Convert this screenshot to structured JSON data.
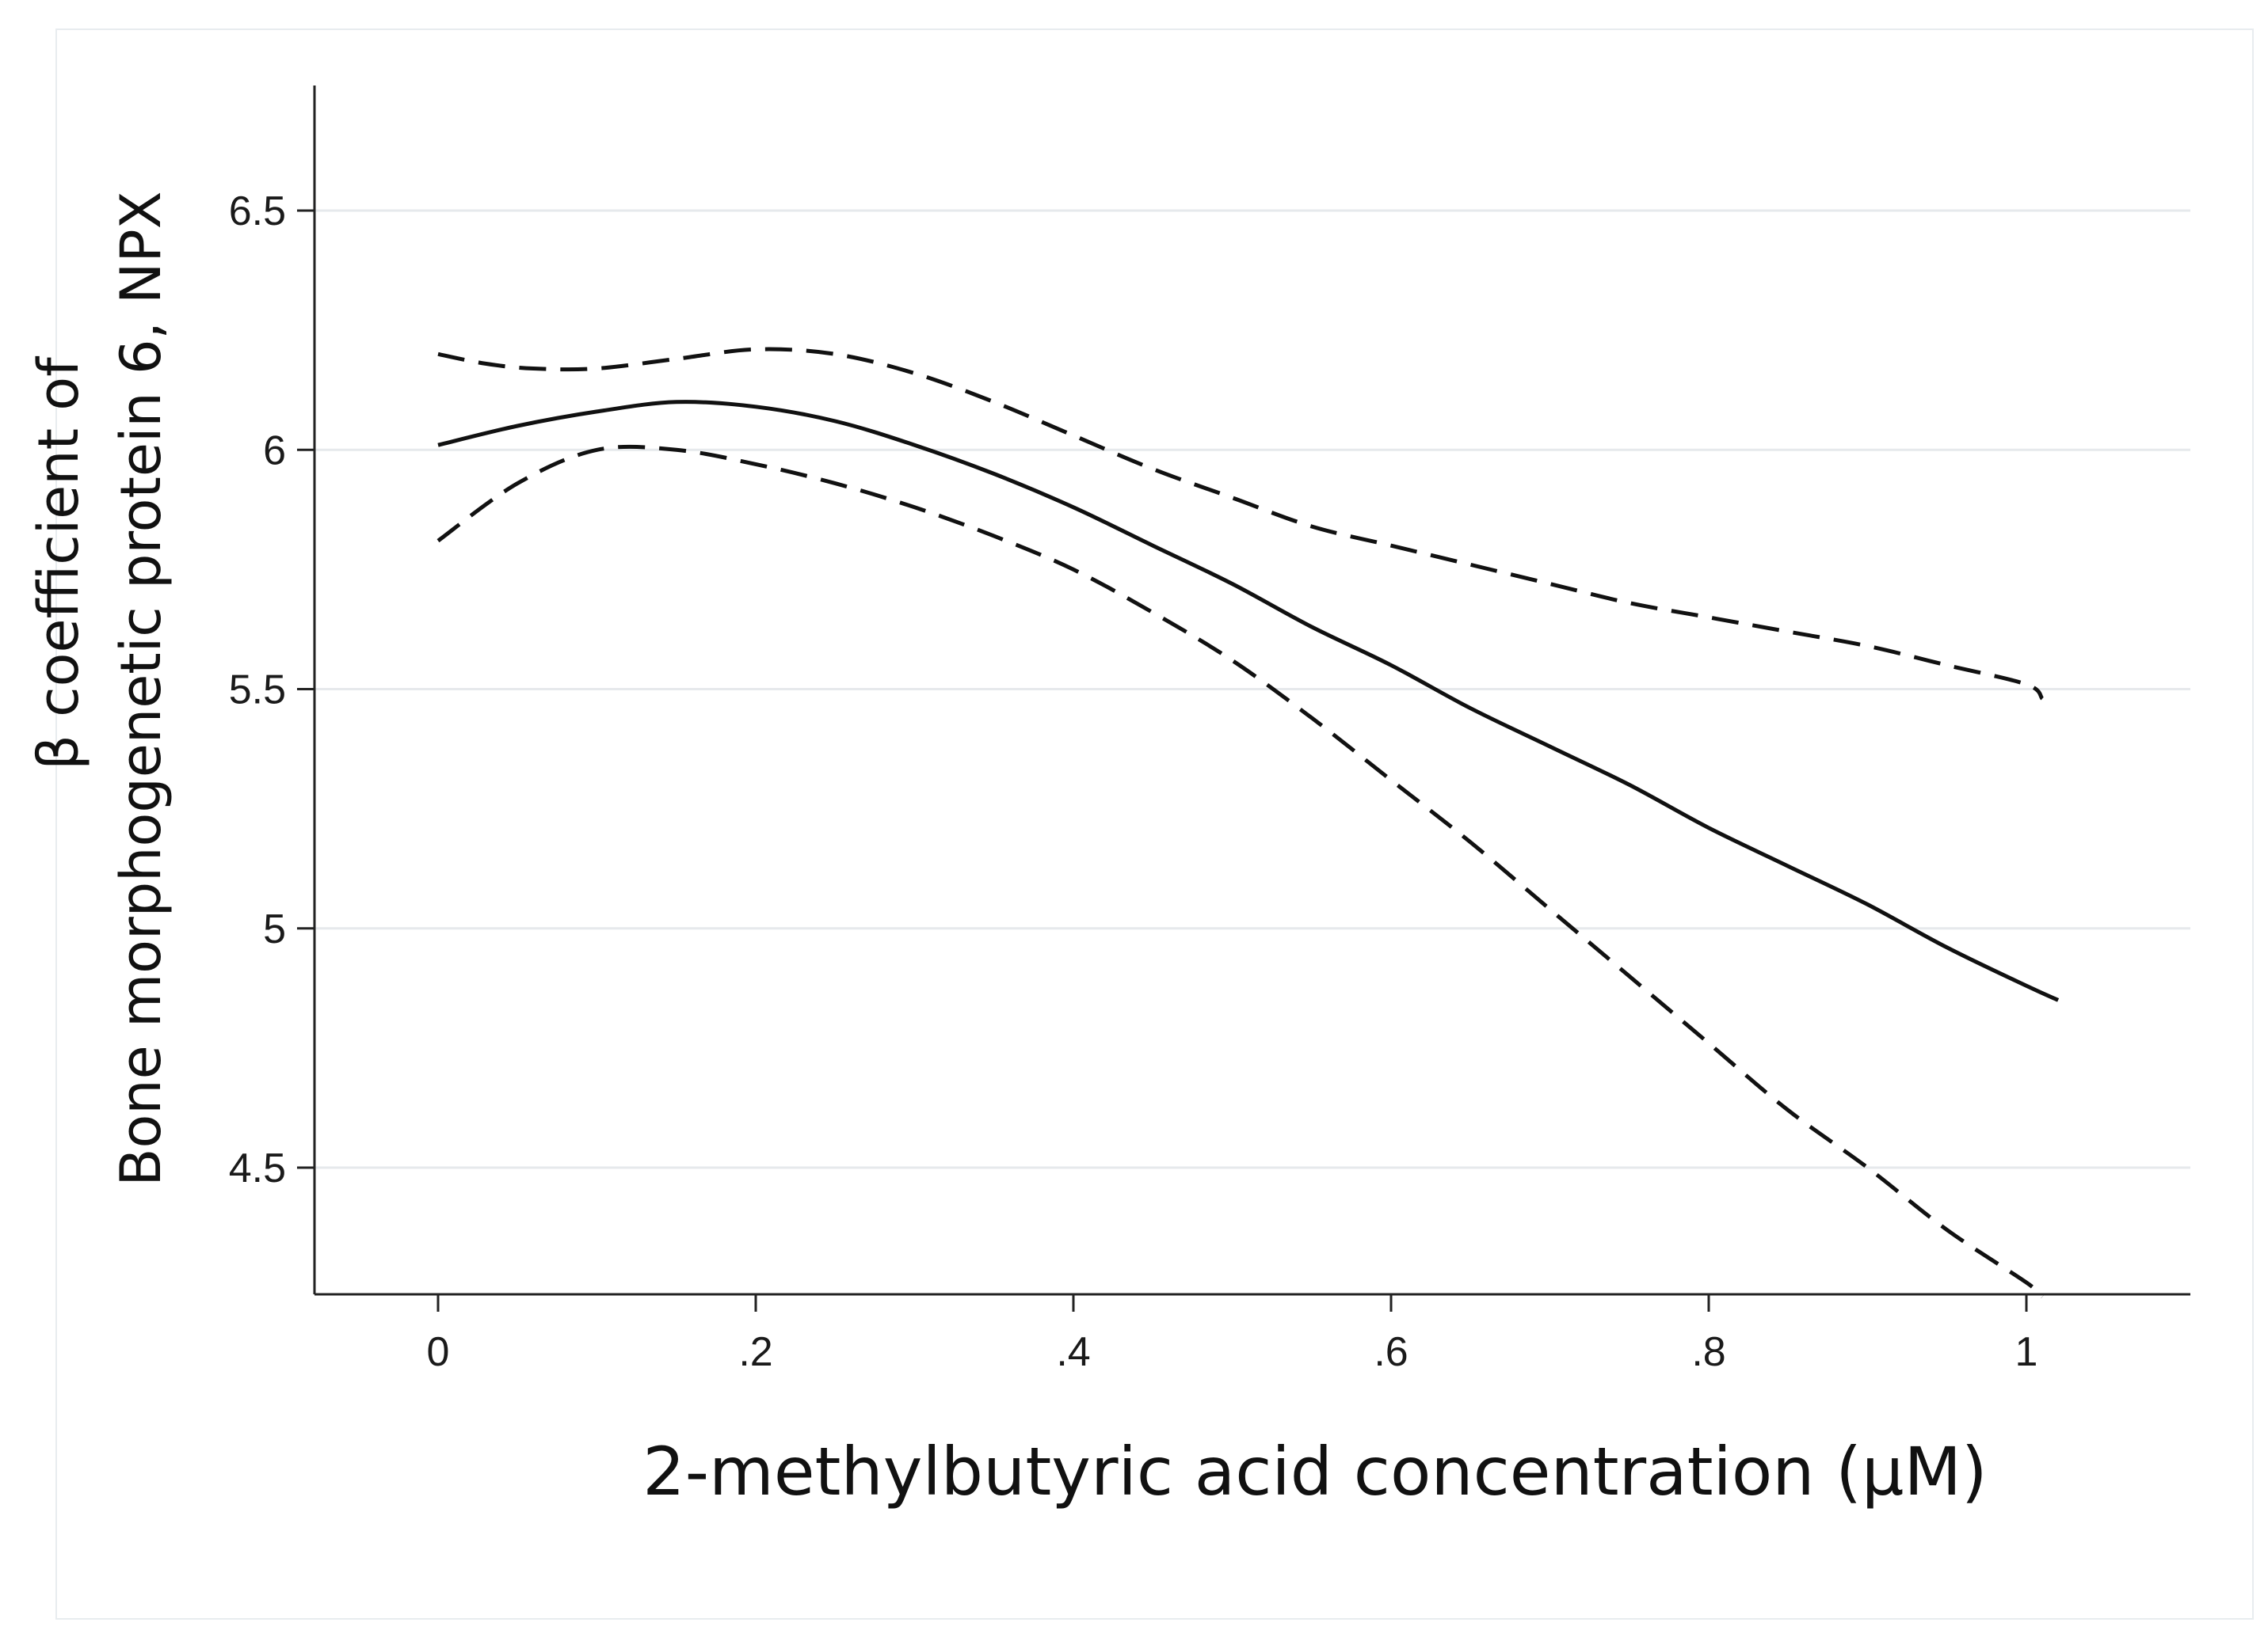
{
  "chart_data": {
    "type": "line",
    "title": "",
    "xlabel": "2-methylbutyric acid concentration (μM)",
    "ylabel_lines": [
      "β coefficient of",
      "Bone morphogenetic protein 6, NPX"
    ],
    "xlim": [
      -0.16,
      2.2
    ],
    "ylim": [
      4.25,
      6.77
    ],
    "x_ticks": [
      0,
      0.2,
      0.4,
      0.6,
      0.8,
      1
    ],
    "x_tick_labels": [
      "0",
      ".2",
      ".4",
      ".6",
      ".8",
      "1"
    ],
    "y_ticks": [
      4.5,
      5,
      5.5,
      6,
      6.5
    ],
    "y_tick_labels": [
      "4.5",
      "5",
      "5.5",
      "6",
      "6.5"
    ],
    "grid": "horizontal",
    "series": [
      {
        "style": "solid",
        "x": [
          0,
          0.05,
          0.1,
          0.15,
          0.2,
          0.25,
          0.3,
          0.35,
          0.4,
          0.45,
          0.5,
          0.55,
          0.6,
          0.65,
          0.7,
          0.75,
          0.8,
          0.85,
          0.9,
          0.95,
          1.0,
          1.02
        ],
        "y": [
          6.01,
          6.05,
          6.08,
          6.1,
          6.09,
          6.06,
          6.01,
          5.95,
          5.88,
          5.8,
          5.72,
          5.63,
          5.55,
          5.46,
          5.38,
          5.3,
          5.21,
          5.13,
          5.05,
          4.96,
          4.88,
          4.85
        ]
      },
      {
        "style": "dashed",
        "x": [
          0,
          0.03,
          0.06,
          0.1,
          0.15,
          0.2,
          0.25,
          0.3,
          0.35,
          0.4,
          0.45,
          0.5,
          0.55,
          0.6,
          0.65,
          0.7,
          0.75,
          0.8,
          0.85,
          0.9,
          0.95,
          1.0,
          1.01
        ],
        "y": [
          6.2,
          6.18,
          6.17,
          6.17,
          6.19,
          6.21,
          6.2,
          6.16,
          6.1,
          6.03,
          5.96,
          5.9,
          5.84,
          5.8,
          5.76,
          5.72,
          5.68,
          5.65,
          5.62,
          5.59,
          5.55,
          5.51,
          5.48
        ]
      },
      {
        "style": "dashed",
        "x": [
          0,
          0.05,
          0.1,
          0.15,
          0.2,
          0.25,
          0.3,
          0.35,
          0.4,
          0.45,
          0.5,
          0.55,
          0.6,
          0.65,
          0.7,
          0.75,
          0.8,
          0.85,
          0.9,
          0.95,
          1.0,
          1.01
        ],
        "y": [
          5.81,
          5.93,
          6.0,
          6.0,
          5.97,
          5.93,
          5.88,
          5.82,
          5.75,
          5.66,
          5.56,
          5.44,
          5.31,
          5.18,
          5.04,
          4.9,
          4.76,
          4.62,
          4.5,
          4.37,
          4.26,
          4.23
        ]
      }
    ]
  }
}
